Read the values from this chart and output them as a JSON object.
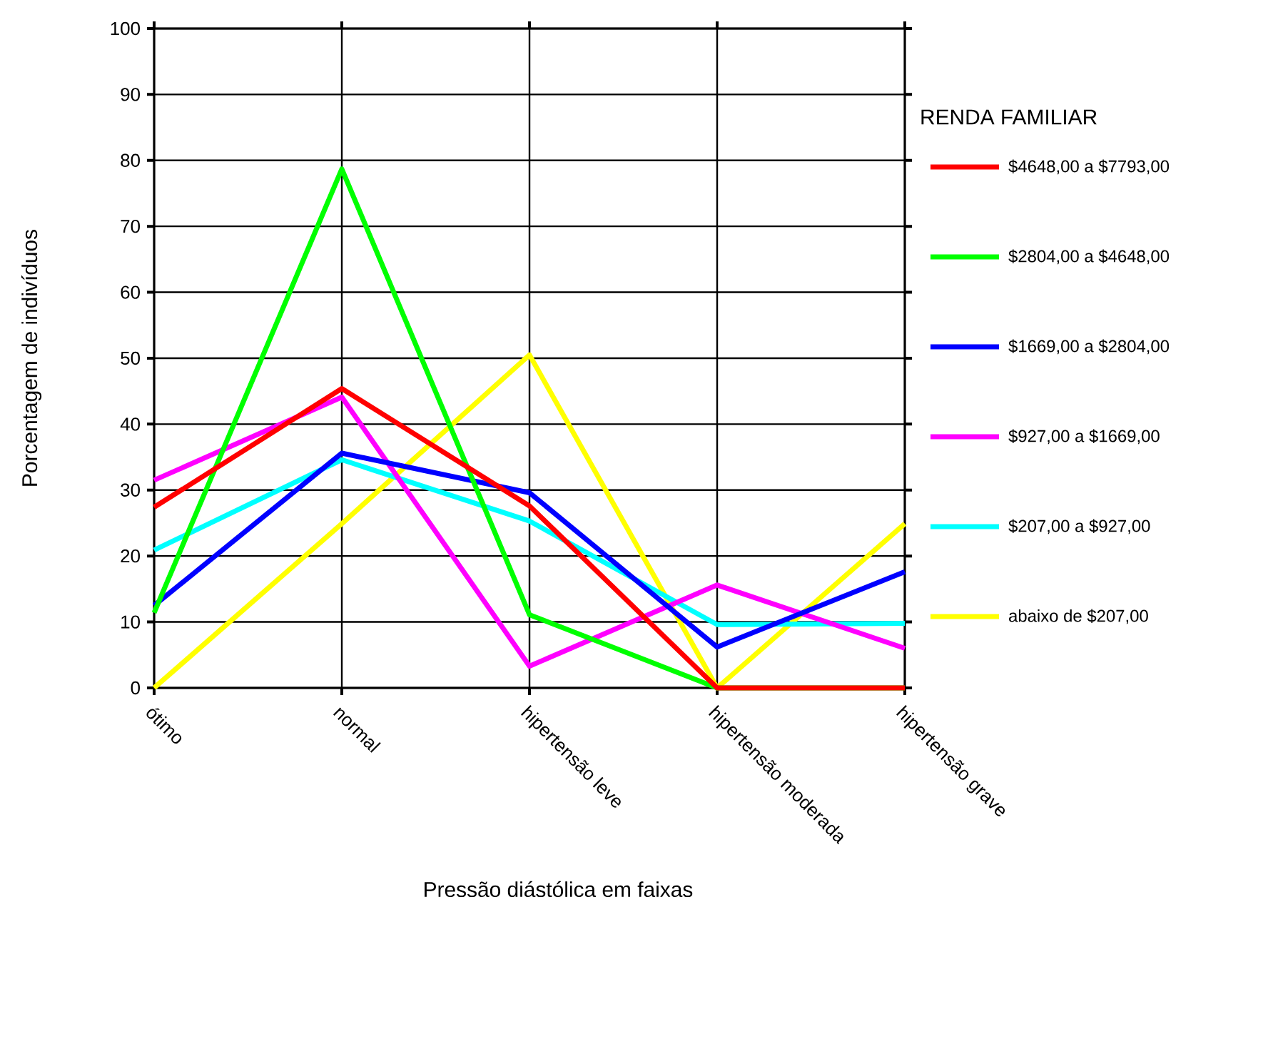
{
  "chart_data": {
    "type": "line",
    "xlabel": "Pressão diástólica em faixas",
    "ylabel": "Porcentagem de indivíduos",
    "legend_title": "RENDA FAMILIAR",
    "categories": [
      "ótimo",
      "normal",
      "hipertensão leve",
      "hipertensão moderada",
      "hipertensão grave"
    ],
    "ylim": [
      0,
      100
    ],
    "yticks": [
      0,
      10,
      20,
      30,
      40,
      50,
      60,
      70,
      80,
      90,
      100
    ],
    "grid": true,
    "legend": "right",
    "marker": "none",
    "line_style": "solid",
    "series": [
      {
        "name": "$4648,00 a $7793,00",
        "color": "#ff0000",
        "values": [
          27.4,
          45.4,
          27.6,
          0,
          0
        ]
      },
      {
        "name": "$2804,00 a $4648,00",
        "color": "#00ff00",
        "values": [
          11.4,
          78.7,
          11.1,
          0,
          0
        ]
      },
      {
        "name": "$1669,00 a $2804,00",
        "color": "#0000ff",
        "values": [
          12.5,
          35.6,
          29.6,
          6.2,
          17.6
        ]
      },
      {
        "name": "$927,00 a $1669,00",
        "color": "#ff00ff",
        "values": [
          31.5,
          44.1,
          3.3,
          15.6,
          6
        ]
      },
      {
        "name": "$207,00 a $927,00",
        "color": "#00ffff",
        "values": [
          20.9,
          34.6,
          25.3,
          9.6,
          9.8
        ]
      },
      {
        "name": "abaixo de $207,00",
        "color": "#ffff00",
        "values": [
          0,
          24.9,
          50.5,
          0,
          24.9
        ]
      }
    ]
  }
}
